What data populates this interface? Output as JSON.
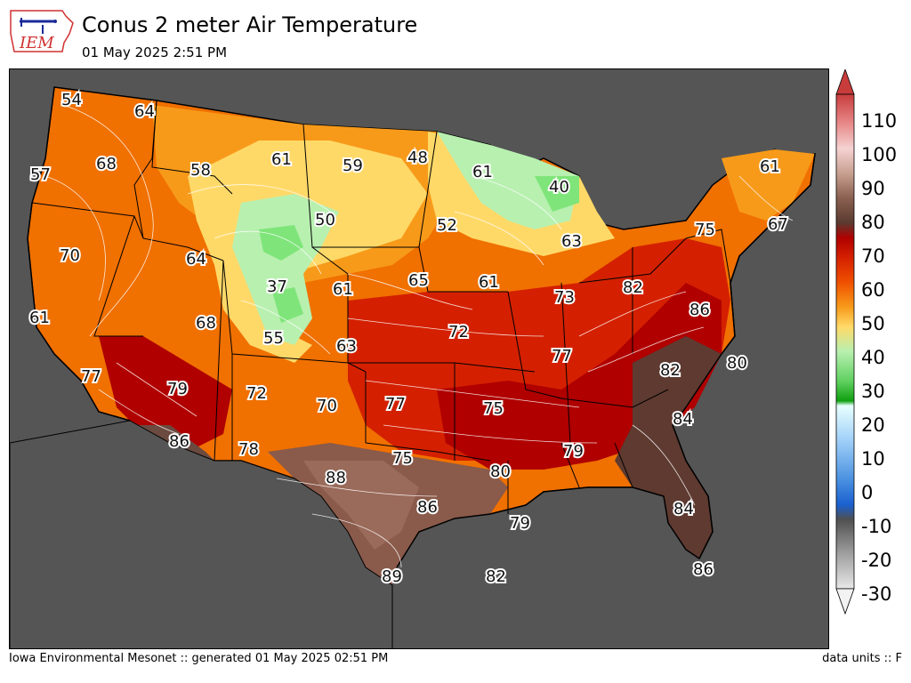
{
  "header": {
    "title": "Conus 2 meter Air Temperature",
    "subtitle": "01 May 2025 2:51 PM",
    "logo_text": "IEM"
  },
  "footer": {
    "credit": "Iowa Environmental Mesonet :: generated 01 May 2025 02:51 PM",
    "units": "data units :: F"
  },
  "colors": {
    "ocean": "#555555",
    "low_brown": "#6b4a40",
    "dark_red": "#b00000",
    "red": "#d42000",
    "red_orange": "#e84000",
    "orange": "#f07000",
    "orange_amber": "#f79a1a",
    "yellow": "#ffd968",
    "light_green": "#b8f0b0",
    "green": "#7fe57a"
  },
  "colorbar": {
    "ticks": [
      "110",
      "100",
      "90",
      "80",
      "70",
      "60",
      "50",
      "40",
      "30",
      "20",
      "10",
      "0",
      "-10",
      "-20",
      "-30"
    ]
  },
  "labels": [
    {
      "text": "54"
    },
    {
      "text": "64"
    },
    {
      "text": "57"
    },
    {
      "text": "68"
    },
    {
      "text": "58"
    },
    {
      "text": "61"
    },
    {
      "text": "59"
    },
    {
      "text": "48"
    },
    {
      "text": "61"
    },
    {
      "text": "40"
    },
    {
      "text": "61"
    },
    {
      "text": "70"
    },
    {
      "text": "50"
    },
    {
      "text": "52"
    },
    {
      "text": "75"
    },
    {
      "text": "67"
    },
    {
      "text": "63"
    },
    {
      "text": "64"
    },
    {
      "text": "61"
    },
    {
      "text": "37"
    },
    {
      "text": "65"
    },
    {
      "text": "61"
    },
    {
      "text": "73"
    },
    {
      "text": "82"
    },
    {
      "text": "86"
    },
    {
      "text": "61"
    },
    {
      "text": "68"
    },
    {
      "text": "55"
    },
    {
      "text": "63"
    },
    {
      "text": "72"
    },
    {
      "text": "77"
    },
    {
      "text": "80"
    },
    {
      "text": "82"
    },
    {
      "text": "77"
    },
    {
      "text": "79"
    },
    {
      "text": "72"
    },
    {
      "text": "70"
    },
    {
      "text": "77"
    },
    {
      "text": "75"
    },
    {
      "text": "84"
    },
    {
      "text": "86"
    },
    {
      "text": "78"
    },
    {
      "text": "79"
    },
    {
      "text": "75"
    },
    {
      "text": "80"
    },
    {
      "text": "88"
    },
    {
      "text": "86"
    },
    {
      "text": "79"
    },
    {
      "text": "84"
    },
    {
      "text": "89"
    },
    {
      "text": "82"
    },
    {
      "text": "86"
    }
  ]
}
